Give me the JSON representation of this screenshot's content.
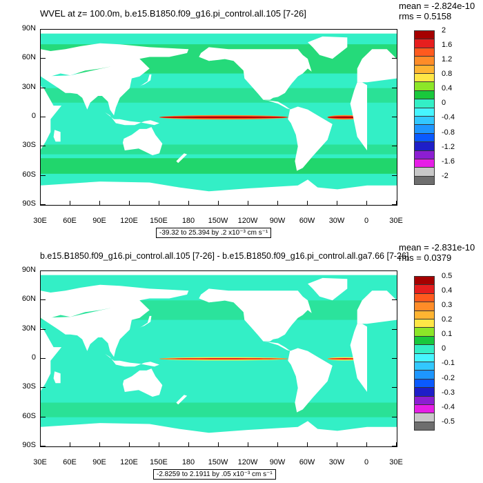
{
  "top": {
    "title": "WVEL at z= 100.0m, b.e15.B1850.f09_g16.pi_control.all.105 [7-26]",
    "mean": "mean = -2.824e-10",
    "rms": "rms = 0.5158",
    "range": "-39.32 to 25.394 by .2 x10⁻³ cm s⁻¹",
    "colorbar_labels": [
      "2",
      "1.6",
      "1.2",
      "0.8",
      "0.4",
      "0",
      "-0.4",
      "-0.8",
      "-1.2",
      "-1.6",
      "-2"
    ]
  },
  "bottom": {
    "title": "b.e15.B1850.f09_g16.pi_control.all.105 [7-26] - b.e15.B1850.f09_g16.pi_control.all.ga7.66 [7-26]",
    "mean": "mean = -2.831e-10",
    "rms": "rms = 0.0379",
    "range": "-2.8259 to 2.1911 by .05 x10⁻³ cm s⁻¹",
    "colorbar_labels": [
      "0.5",
      "0.4",
      "0.3",
      "0.2",
      "0.1",
      "0",
      "-0.1",
      "-0.2",
      "-0.3",
      "-0.4",
      "-0.5"
    ]
  },
  "axes": {
    "lat_labels": [
      "90N",
      "60N",
      "30N",
      "0",
      "30S",
      "60S",
      "90S"
    ],
    "lon_labels": [
      "30E",
      "60E",
      "90E",
      "120E",
      "150E",
      "180",
      "150W",
      "120W",
      "90W",
      "60W",
      "30W",
      "0",
      "30E"
    ]
  },
  "colors": {
    "ocean": "#33efc6",
    "land": "#ffffff",
    "scale": [
      "#a50000",
      "#e61e1e",
      "#ff5a1e",
      "#ff8c28",
      "#ffb432",
      "#ffe646",
      "#8ce628",
      "#19c83c",
      "#33efc6",
      "#46f5ff",
      "#32c8ff",
      "#1e96ff",
      "#0a5aff",
      "#1e1ec8",
      "#8c1ed2",
      "#e61ee6",
      "#c8c8c8",
      "#6e6e6e"
    ]
  }
}
